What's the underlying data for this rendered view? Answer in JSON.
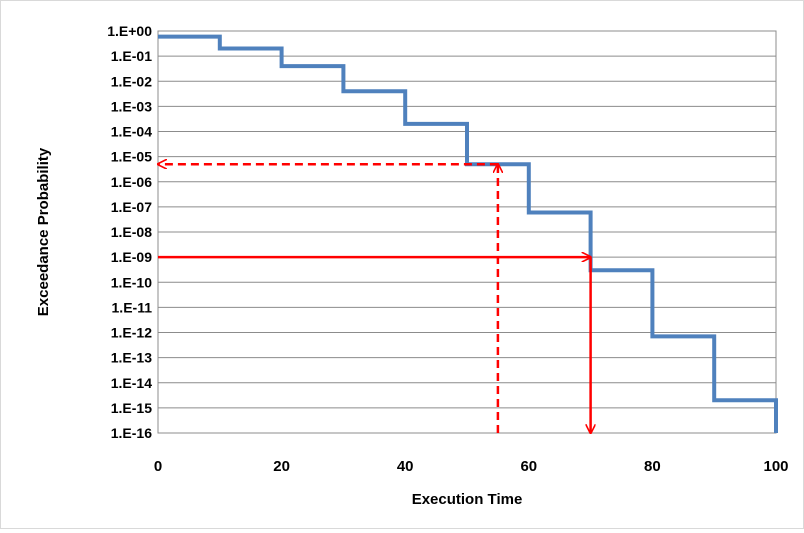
{
  "chart_data": {
    "type": "line",
    "step": true,
    "title": "",
    "xlabel": "Execution Time",
    "ylabel": "Exceedance Probability",
    "x_axis": {
      "min": 0,
      "max": 100,
      "ticks": [
        0,
        20,
        40,
        60,
        80,
        100
      ],
      "tick_labels": [
        "0",
        "20",
        "40",
        "60",
        "80",
        "100"
      ]
    },
    "y_axis": {
      "scale": "log",
      "min": 1e-16,
      "max": 1,
      "tick_labels": [
        "1.E+00",
        "1.E-01",
        "1.E-02",
        "1.E-03",
        "1.E-04",
        "1.E-05",
        "1.E-06",
        "1.E-07",
        "1.E-08",
        "1.E-09",
        "1.E-10",
        "1.E-11",
        "1.E-12",
        "1.E-13",
        "1.E-14",
        "1.E-15",
        "1.E-16"
      ],
      "tick_exponents": [
        0,
        -1,
        -2,
        -3,
        -4,
        -5,
        -6,
        -7,
        -8,
        -9,
        -10,
        -11,
        -12,
        -13,
        -14,
        -15,
        -16
      ]
    },
    "grid": {
      "horizontal": true,
      "vertical": false
    },
    "series": [
      {
        "color": "#4f81bd",
        "x": [
          0,
          10,
          20,
          30,
          40,
          50,
          60,
          70,
          80,
          90,
          100
        ],
        "y": [
          0.6,
          0.2,
          0.04,
          0.004,
          0.0002,
          5e-06,
          6e-08,
          3e-10,
          7e-13,
          2e-15,
          1e-16
        ]
      }
    ],
    "annotations": [
      {
        "style": "dashed",
        "color": "#ff0000",
        "from": [
          55,
          1e-16
        ],
        "to": [
          55,
          5e-06
        ],
        "arrow": "end"
      },
      {
        "style": "dashed",
        "color": "#ff0000",
        "from": [
          55,
          5e-06
        ],
        "to": [
          0,
          5e-06
        ],
        "arrow": "end"
      },
      {
        "style": "solid",
        "color": "#ff0000",
        "from": [
          0,
          1e-09
        ],
        "to": [
          70,
          1e-09
        ],
        "arrow": "end"
      },
      {
        "style": "solid",
        "color": "#ff0000",
        "from": [
          70,
          1e-09
        ],
        "to": [
          70,
          1e-16
        ],
        "arrow": "end"
      }
    ]
  }
}
